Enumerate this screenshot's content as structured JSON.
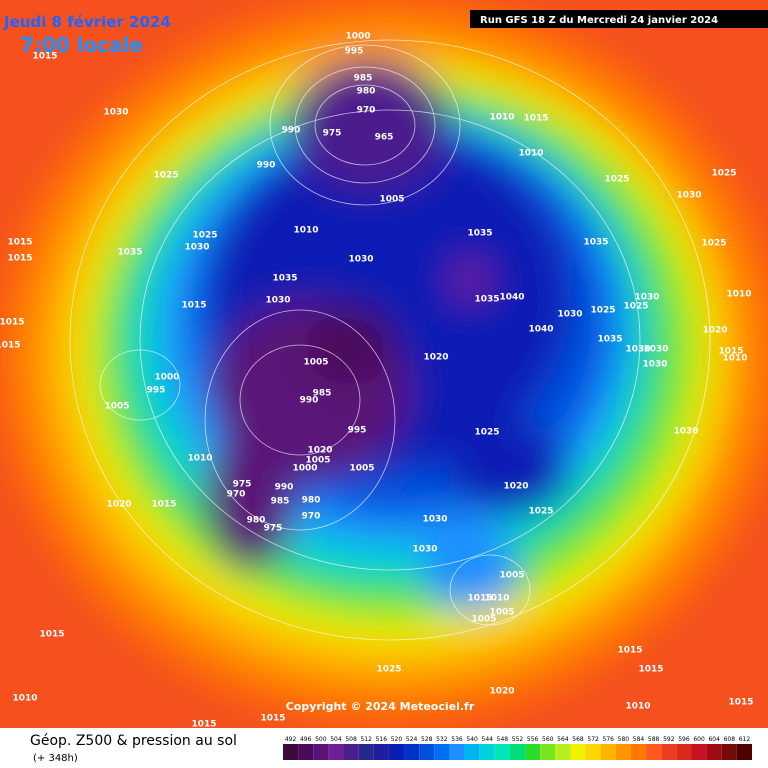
{
  "header": {
    "date": "Jeudi 8 février 2024",
    "time": "7:00 locale",
    "run": "Run GFS 18 Z du Mercredi 24 janvier 2024"
  },
  "copyright": "Copyright © 2024 Meteociel.fr",
  "footer": {
    "title": "Géop. Z500 & pression au sol",
    "lead": "(+ 348h)"
  },
  "scale": {
    "values": [
      492,
      496,
      500,
      504,
      508,
      512,
      516,
      520,
      524,
      528,
      532,
      536,
      540,
      544,
      548,
      552,
      556,
      560,
      564,
      568,
      572,
      576,
      580,
      584,
      588,
      592,
      596,
      600,
      604,
      608,
      612
    ],
    "colors": [
      "#3c0a3c",
      "#4b0a5a",
      "#5a1478",
      "#6e1e96",
      "#4b1e8c",
      "#28288c",
      "#1e1ea0",
      "#0a1eb4",
      "#0032c8",
      "#0050dc",
      "#006ef0",
      "#1e90ff",
      "#00b4f0",
      "#00d2dc",
      "#00e6b4",
      "#00dc78",
      "#28dc28",
      "#78e61e",
      "#b4f01e",
      "#f0f000",
      "#ffd700",
      "#ffb400",
      "#ff9600",
      "#ff7800",
      "#ff5a1e",
      "#f03c1e",
      "#dc281e",
      "#c8141e",
      "#a00a14",
      "#780a0a",
      "#500000"
    ]
  },
  "isobar_labels": [
    1000,
    995,
    1015,
    985,
    980,
    970,
    975,
    965,
    990,
    990,
    1030,
    1025,
    1010,
    1015,
    1010,
    1025,
    1025,
    1030,
    1005,
    1010,
    1025,
    1030,
    1035,
    1035,
    1035,
    1025,
    1015,
    1015,
    1035,
    1030,
    1030,
    1015,
    1035,
    1040,
    1030,
    1025,
    1025,
    1030,
    1010,
    1015,
    1015,
    1040,
    1035,
    1030,
    1030,
    1020,
    1015,
    1010,
    1030,
    1005,
    1020,
    1000,
    995,
    985,
    990,
    1005,
    995,
    1025,
    1030,
    1020,
    1005,
    1010,
    1000,
    1005,
    975,
    990,
    970,
    985,
    980,
    970,
    1020,
    1025,
    1020,
    1015,
    980,
    975,
    1030,
    1030,
    1005,
    1015,
    1010,
    1005,
    1005,
    1015,
    1015,
    1015,
    1025,
    1020,
    1010,
    1010,
    1015,
    1015,
    1015
  ]
}
